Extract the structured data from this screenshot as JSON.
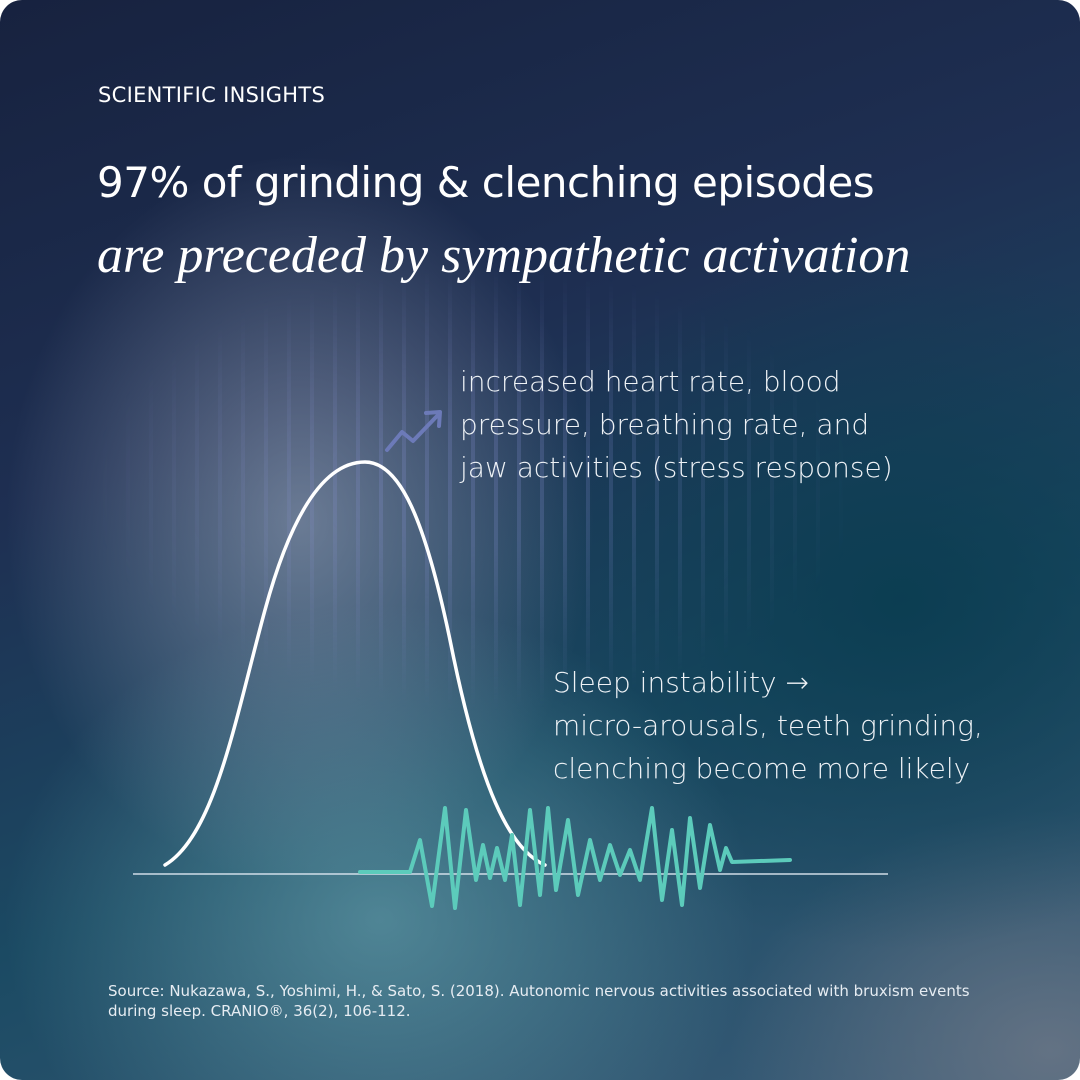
{
  "eyebrow": "SCIENTIFIC INSIGHTS",
  "headline": {
    "line1": "97% of grinding & clenching episodes",
    "line2": "are preceded by sympathetic activation"
  },
  "annotation_top": {
    "lines": [
      "increased heart rate, blood",
      "pressure, breathing rate, and",
      "jaw activities (stress response)"
    ]
  },
  "annotation_bottom": {
    "lines": [
      "Sleep instability →",
      "micro-arousals, teeth grinding,",
      "clenching become more likely"
    ]
  },
  "source": "Source: Nukazawa, S., Yoshimi, H., & Sato, S. (2018). Autonomic nervous activities associated with bruxism events during sleep. CRANIO®, 36(2), 106-112."
}
